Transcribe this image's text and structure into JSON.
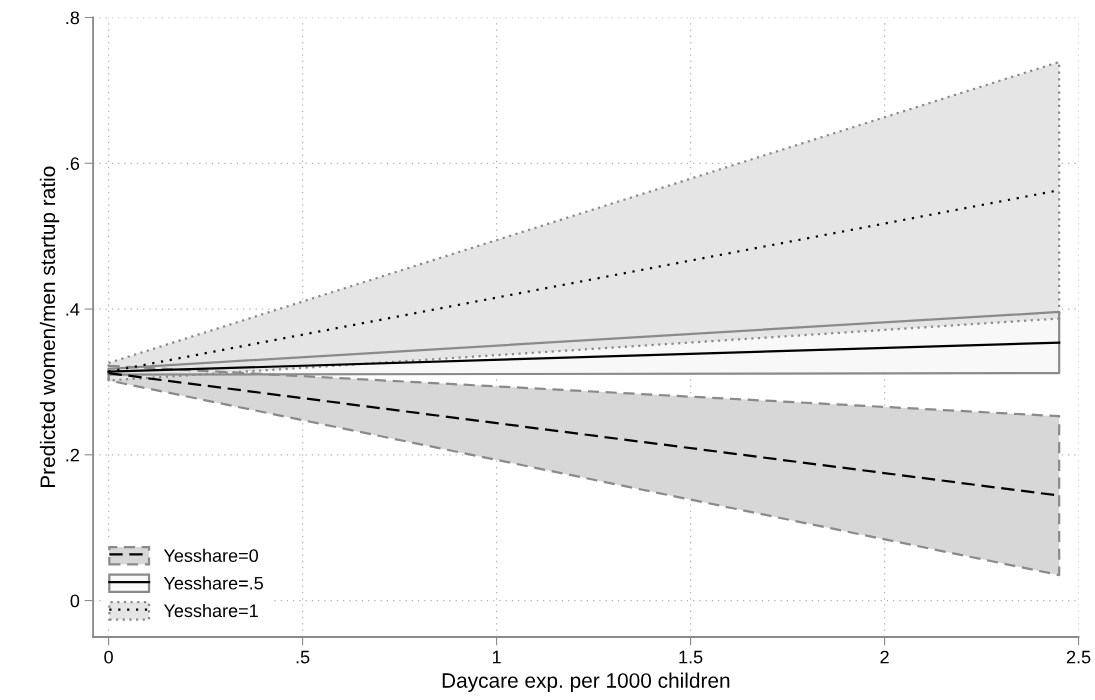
{
  "chart_data": {
    "type": "line",
    "xlabel": "Daycare exp. per 1000 children",
    "ylabel": "Predicted women/men startup ratio",
    "xlim": [
      -0.04,
      2.5
    ],
    "ylim": [
      -0.05,
      0.8
    ],
    "xticks": [
      0,
      {
        "value": 0.5,
        "label": ".5"
      },
      1,
      1.5,
      2,
      2.5
    ],
    "yticks": [
      0,
      {
        "value": 0.2,
        "label": ".2"
      },
      {
        "value": 0.4,
        "label": ".4"
      },
      {
        "value": 0.6,
        "label": ".6"
      },
      {
        "value": 0.8,
        "label": ".8"
      }
    ],
    "grid": true,
    "legend": "bottom left",
    "x": [
      0,
      2.45
    ],
    "series": [
      {
        "name": "Yesshare=0",
        "color": "#000000",
        "line_style": "dashed",
        "values": [
          0.312,
          0.144
        ],
        "lower": [
          0.302,
          0.035
        ],
        "upper": [
          0.322,
          0.253
        ]
      },
      {
        "name": "Yesshare=.5",
        "color": "#000000",
        "line_style": "solid",
        "values": [
          0.314,
          0.354
        ],
        "lower": [
          0.31,
          0.312
        ],
        "upper": [
          0.318,
          0.396
        ]
      },
      {
        "name": "Yesshare=1",
        "color": "#000000",
        "line_style": "dotted",
        "values": [
          0.314,
          0.563
        ],
        "lower": [
          0.302,
          0.387
        ],
        "upper": [
          0.326,
          0.739
        ]
      }
    ]
  }
}
